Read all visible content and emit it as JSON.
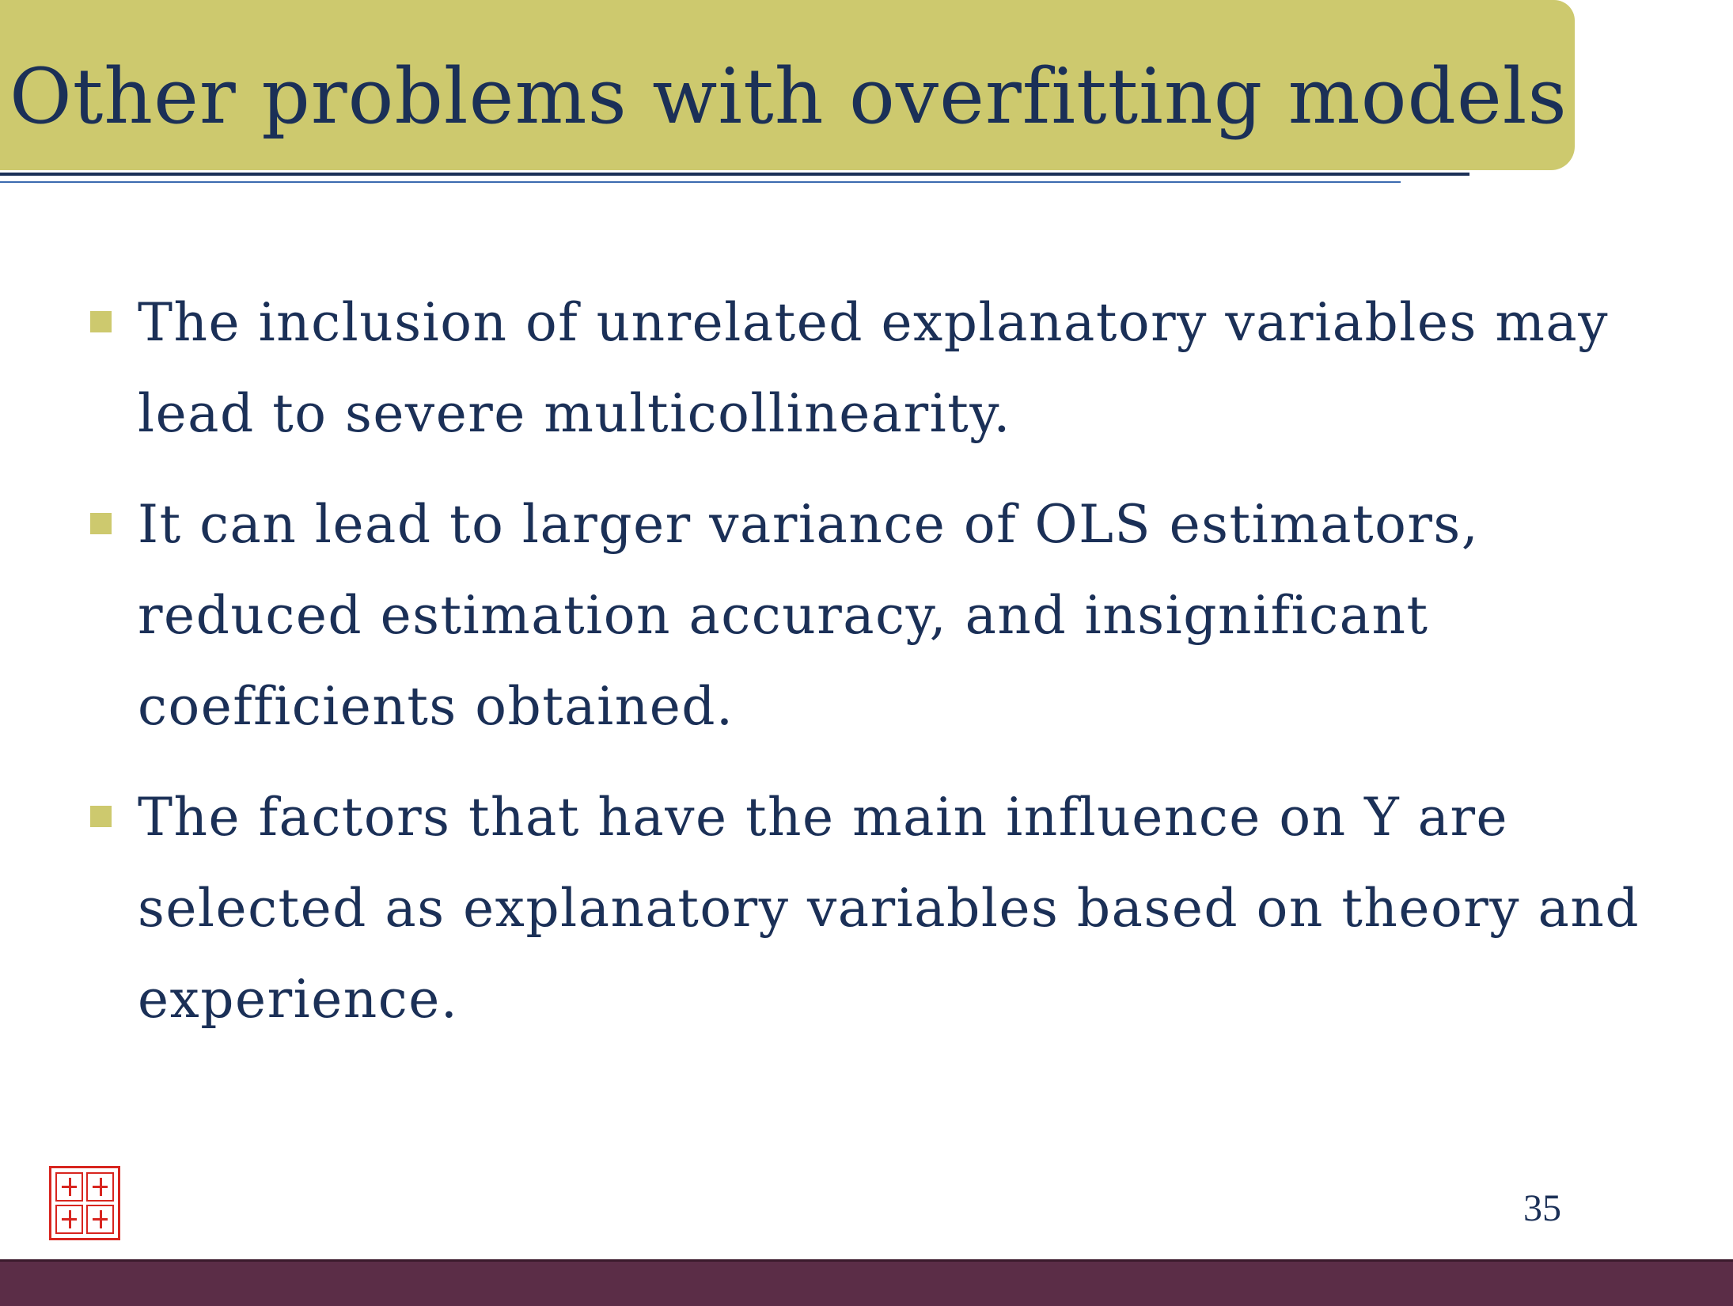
{
  "slide": {
    "title": "Other problems with overfitting models",
    "bullets": [
      "The inclusion of unrelated explanatory variables may lead to severe multicollinearity.",
      "It can lead to larger variance of OLS estimators, reduced estimation accuracy, and insignificant coefficients obtained.",
      "The factors that have the main influence on Y are selected as explanatory variables based on theory and experience."
    ],
    "page_number": "35"
  },
  "colors": {
    "title_band": "#cdc96e",
    "text": "#1b3057",
    "bullet_marker": "#cdc96e",
    "footer_bar": "#5b2d47",
    "seal": "#d8251f"
  },
  "icons": {
    "bullet": "square-bullet-icon",
    "seal": "red-seal-logo"
  }
}
